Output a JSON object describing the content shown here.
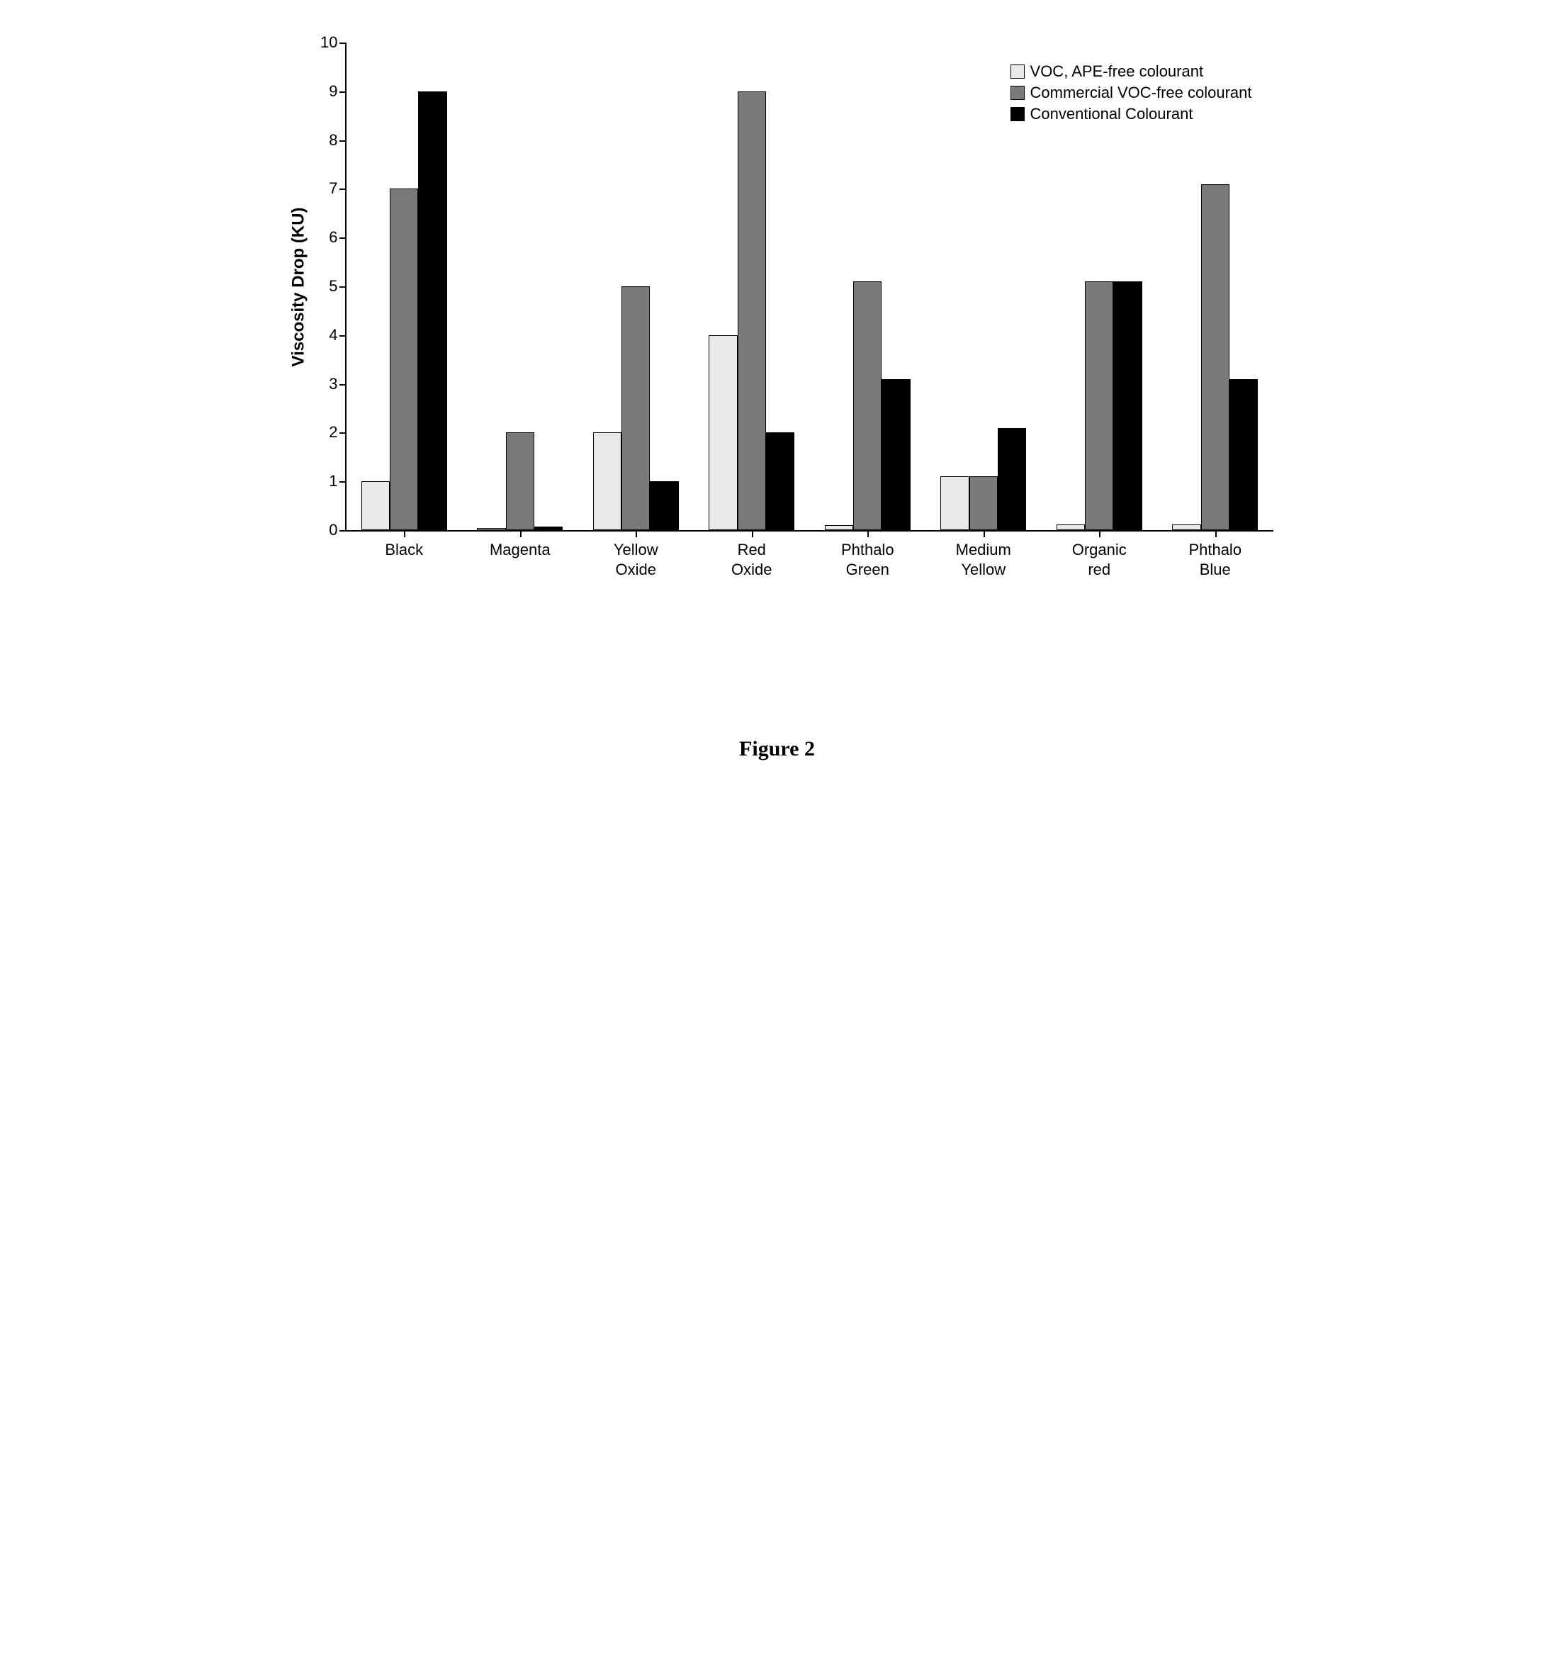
{
  "chart": {
    "type": "bar",
    "ylabel": "Viscosity Drop (KU)",
    "ylim": [
      0,
      10
    ],
    "ytick_step": 1,
    "yticks": [
      0,
      1,
      2,
      3,
      4,
      5,
      6,
      7,
      8,
      9,
      10
    ],
    "background_color": "#ffffff",
    "axis_color": "#000000",
    "label_fontsize": 22,
    "ylabel_fontsize": 24,
    "bar_border_color": "#000000",
    "categories": [
      "Black",
      "Magenta",
      "Yellow\nOxide",
      "Red\nOxide",
      "Phthalo\nGreen",
      "Medium\nYellow",
      "Organic\nred",
      "Phthalo\nBlue"
    ],
    "series": [
      {
        "name": "VOC, APE-free colourant",
        "color": "#e9e9e9",
        "values": [
          1.0,
          0.05,
          2.0,
          4.0,
          0.1,
          1.1,
          0.12,
          0.12
        ]
      },
      {
        "name": "Commercial VOC-free colourant",
        "color": "#7a7a7a",
        "values": [
          7.0,
          2.0,
          5.0,
          9.0,
          5.1,
          1.1,
          5.1,
          7.1
        ]
      },
      {
        "name": "Conventional Colourant",
        "color": "#000000",
        "values": [
          9.0,
          0.08,
          1.0,
          2.0,
          3.1,
          2.1,
          5.1,
          3.1
        ]
      }
    ],
    "legend": {
      "position": "top-right",
      "fontsize": 22
    }
  },
  "caption": "Figure 2"
}
